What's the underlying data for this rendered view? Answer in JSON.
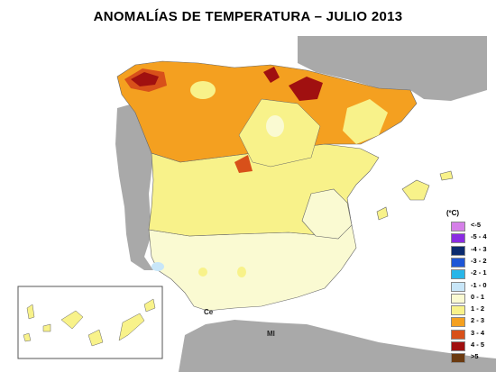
{
  "title": "ANOMALÍAS DE TEMPERATURA – JULIO 2013",
  "legend": {
    "unit": "(ºC)",
    "items": [
      {
        "label": "<-5",
        "color": "#d580e8"
      },
      {
        "label": "-5 - 4",
        "color": "#8a2be2"
      },
      {
        "label": "-4 - 3",
        "color": "#0b2a6e"
      },
      {
        "label": "-3 - 2",
        "color": "#1e56d6"
      },
      {
        "label": "-2 - 1",
        "color": "#29b6e8"
      },
      {
        "label": "-1 - 0",
        "color": "#c8e6f8"
      },
      {
        "label": "0 - 1",
        "color": "#fafad2"
      },
      {
        "label": "1 - 2",
        "color": "#f8f28a"
      },
      {
        "label": "2 - 3",
        "color": "#f4a020"
      },
      {
        "label": "3 - 4",
        "color": "#d8501a"
      },
      {
        "label": "4 - 5",
        "color": "#a01010"
      },
      {
        "label": ">5",
        "color": "#6b3a10"
      }
    ]
  },
  "places": {
    "ceuta": "Ce",
    "melilla": "Ml"
  }
}
